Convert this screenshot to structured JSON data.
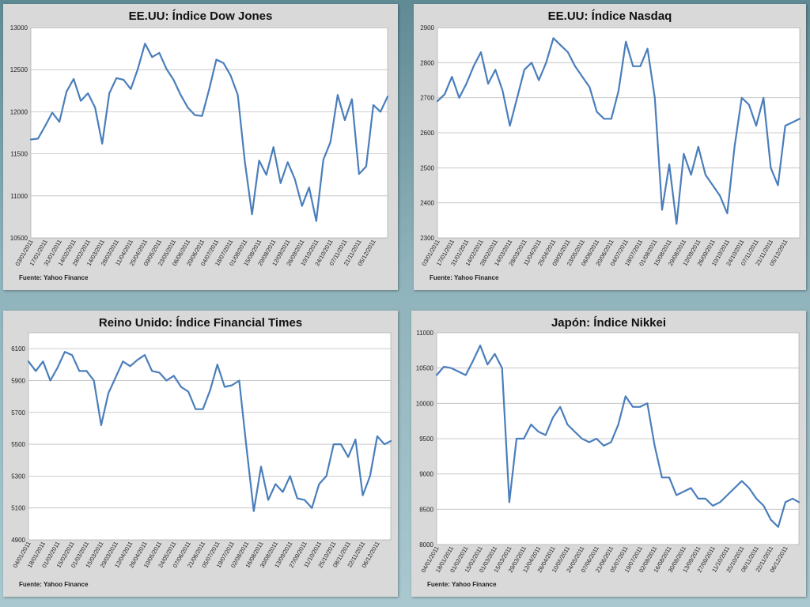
{
  "chart_data": [
    {
      "type": "line",
      "title": "EE.UU: Índice Dow Jones",
      "source": "Fuente:  Yahoo Finance",
      "ylim": [
        10500,
        13000
      ],
      "yticks": [
        10500,
        11000,
        11500,
        12000,
        12500,
        13000
      ],
      "xlim": [
        "2011-01-03",
        "2011-12-19"
      ],
      "xticks": [
        "03/01/2011",
        "17/01/2011",
        "31/01/2011",
        "14/02/2011",
        "28/02/2011",
        "14/03/2011",
        "28/03/2011",
        "11/04/2011",
        "25/04/2011",
        "09/05/2011",
        "23/05/2011",
        "06/06/2011",
        "20/06/2011",
        "04/07/2011",
        "18/07/2011",
        "01/08/2011",
        "15/08/2011",
        "29/08/2011",
        "12/09/2011",
        "26/09/2011",
        "10/10/2011",
        "24/10/2011",
        "07/11/2011",
        "21/11/2011",
        "05/12/2011"
      ],
      "grid": true,
      "series": [
        {
          "color": "#4a7ebb",
          "x": [
            "2011-01-03",
            "2011-01-10",
            "2011-01-17",
            "2011-01-24",
            "2011-01-31",
            "2011-02-07",
            "2011-02-14",
            "2011-02-21",
            "2011-02-28",
            "2011-03-07",
            "2011-03-14",
            "2011-03-21",
            "2011-03-28",
            "2011-04-04",
            "2011-04-11",
            "2011-04-18",
            "2011-04-25",
            "2011-05-02",
            "2011-05-09",
            "2011-05-16",
            "2011-05-23",
            "2011-05-30",
            "2011-06-06",
            "2011-06-13",
            "2011-06-20",
            "2011-06-27",
            "2011-07-04",
            "2011-07-11",
            "2011-07-18",
            "2011-07-25",
            "2011-08-01",
            "2011-08-08",
            "2011-08-15",
            "2011-08-22",
            "2011-08-29",
            "2011-09-05",
            "2011-09-12",
            "2011-09-19",
            "2011-09-26",
            "2011-10-03",
            "2011-10-10",
            "2011-10-17",
            "2011-10-24",
            "2011-10-31",
            "2011-11-07",
            "2011-11-14",
            "2011-11-21",
            "2011-11-28",
            "2011-12-05",
            "2011-12-12",
            "2011-12-19"
          ],
          "values": [
            11670,
            11680,
            11830,
            11990,
            11880,
            12240,
            12390,
            12130,
            12220,
            12050,
            11620,
            12220,
            12400,
            12380,
            12270,
            12510,
            12810,
            12650,
            12700,
            12510,
            12380,
            12200,
            12050,
            11960,
            11950,
            12270,
            12620,
            12580,
            12430,
            12200,
            11400,
            10780,
            11420,
            11250,
            11580,
            11150,
            11400,
            11200,
            10880,
            11100,
            10700,
            11430,
            11640,
            12200,
            11900,
            12150,
            11260,
            11350,
            12080,
            12000,
            12180
          ]
        }
      ]
    },
    {
      "type": "line",
      "title": "EE.UU: Índice Nasdaq",
      "source": "Fuente:  Yahoo Finance",
      "ylim": [
        2300,
        2900
      ],
      "yticks": [
        2300,
        2400,
        2500,
        2600,
        2700,
        2800,
        2900
      ],
      "xlim": [
        "2011-01-03",
        "2011-12-19"
      ],
      "xticks": [
        "03/01/2011",
        "17/01/2011",
        "31/01/2011",
        "14/02/2011",
        "28/02/2011",
        "14/03/2011",
        "28/03/2011",
        "11/04/2011",
        "25/04/2011",
        "09/05/2011",
        "23/05/2011",
        "06/06/2011",
        "20/06/2011",
        "04/07/2011",
        "18/07/2011",
        "01/08/2011",
        "15/08/2011",
        "29/08/2011",
        "12/09/2011",
        "26/09/2011",
        "10/10/2011",
        "24/10/2011",
        "07/11/2011",
        "21/11/2011",
        "05/12/2011"
      ],
      "grid": true,
      "series": [
        {
          "color": "#4a7ebb",
          "x": [
            "2011-01-03",
            "2011-01-10",
            "2011-01-17",
            "2011-01-24",
            "2011-01-31",
            "2011-02-07",
            "2011-02-14",
            "2011-02-21",
            "2011-02-28",
            "2011-03-07",
            "2011-03-14",
            "2011-03-21",
            "2011-03-28",
            "2011-04-04",
            "2011-04-11",
            "2011-04-18",
            "2011-04-25",
            "2011-05-02",
            "2011-05-09",
            "2011-05-16",
            "2011-05-23",
            "2011-05-30",
            "2011-06-06",
            "2011-06-13",
            "2011-06-20",
            "2011-06-27",
            "2011-07-04",
            "2011-07-11",
            "2011-07-18",
            "2011-07-25",
            "2011-08-01",
            "2011-08-08",
            "2011-08-15",
            "2011-08-22",
            "2011-08-29",
            "2011-09-05",
            "2011-09-12",
            "2011-09-19",
            "2011-09-26",
            "2011-10-03",
            "2011-10-10",
            "2011-10-17",
            "2011-10-24",
            "2011-10-31",
            "2011-11-07",
            "2011-11-14",
            "2011-11-21",
            "2011-11-28",
            "2011-12-05",
            "2011-12-12",
            "2011-12-19"
          ],
          "values": [
            2690,
            2710,
            2760,
            2700,
            2740,
            2790,
            2830,
            2740,
            2780,
            2720,
            2620,
            2700,
            2780,
            2800,
            2750,
            2800,
            2870,
            2850,
            2830,
            2790,
            2760,
            2730,
            2660,
            2640,
            2640,
            2720,
            2860,
            2790,
            2790,
            2840,
            2700,
            2380,
            2510,
            2340,
            2540,
            2480,
            2560,
            2480,
            2450,
            2420,
            2370,
            2560,
            2700,
            2680,
            2620,
            2700,
            2500,
            2450,
            2620,
            2630,
            2640
          ]
        }
      ]
    },
    {
      "type": "line",
      "title": "Reino Unido: Índice Financial Times",
      "source": "Fuente:  Yahoo Finance",
      "ylim": [
        4900,
        6200
      ],
      "yticks": [
        4900,
        5100,
        5300,
        5500,
        5700,
        5900,
        6100
      ],
      "xlim": [
        "2011-01-04",
        "2011-12-19"
      ],
      "xticks": [
        "04/01/2011",
        "18/01/2011",
        "01/02/2011",
        "15/02/2011",
        "01/03/2011",
        "15/03/2011",
        "29/03/2011",
        "12/04/2011",
        "26/04/2011",
        "10/05/2011",
        "24/05/2011",
        "07/06/2011",
        "21/06/2011",
        "05/07/2011",
        "19/07/2011",
        "02/08/2011",
        "16/08/2011",
        "30/08/2011",
        "13/09/2011",
        "27/09/2011",
        "11/10/2011",
        "25/10/2011",
        "08/11/2011",
        "22/11/2011",
        "06/12/2011"
      ],
      "grid": true,
      "series": [
        {
          "color": "#4a7ebb",
          "x": [
            "2011-01-04",
            "2011-01-11",
            "2011-01-18",
            "2011-01-25",
            "2011-02-01",
            "2011-02-08",
            "2011-02-15",
            "2011-02-22",
            "2011-03-01",
            "2011-03-08",
            "2011-03-15",
            "2011-03-22",
            "2011-03-29",
            "2011-04-05",
            "2011-04-12",
            "2011-04-19",
            "2011-04-26",
            "2011-05-03",
            "2011-05-10",
            "2011-05-17",
            "2011-05-24",
            "2011-05-31",
            "2011-06-07",
            "2011-06-14",
            "2011-06-21",
            "2011-06-28",
            "2011-07-05",
            "2011-07-12",
            "2011-07-19",
            "2011-07-26",
            "2011-08-02",
            "2011-08-09",
            "2011-08-16",
            "2011-08-23",
            "2011-08-30",
            "2011-09-06",
            "2011-09-13",
            "2011-09-20",
            "2011-09-27",
            "2011-10-04",
            "2011-10-11",
            "2011-10-18",
            "2011-10-25",
            "2011-11-01",
            "2011-11-08",
            "2011-11-15",
            "2011-11-22",
            "2011-11-29",
            "2011-12-06",
            "2011-12-13",
            "2011-12-19"
          ],
          "values": [
            6020,
            5960,
            6020,
            5900,
            5980,
            6080,
            6060,
            5960,
            5960,
            5900,
            5620,
            5820,
            5920,
            6020,
            5990,
            6030,
            6060,
            5960,
            5950,
            5900,
            5930,
            5860,
            5830,
            5720,
            5720,
            5840,
            6000,
            5860,
            5870,
            5900,
            5480,
            5080,
            5360,
            5150,
            5250,
            5200,
            5300,
            5160,
            5150,
            5100,
            5250,
            5300,
            5500,
            5500,
            5420,
            5530,
            5180,
            5300,
            5550,
            5500,
            5520
          ]
        }
      ]
    },
    {
      "type": "line",
      "title": "Japón: Índice Nikkei",
      "source": "Fuente:  Yahoo Finance",
      "ylim": [
        8000,
        11000
      ],
      "yticks": [
        8000,
        8500,
        9000,
        9500,
        10000,
        10500,
        11000
      ],
      "xlim": [
        "2011-01-04",
        "2011-12-19"
      ],
      "xticks": [
        "04/01/2011",
        "18/01/2011",
        "01/02/2011",
        "15/02/2011",
        "01/03/2011",
        "15/03/2011",
        "29/03/2011",
        "12/04/2011",
        "26/04/2011",
        "10/05/2011",
        "24/05/2011",
        "07/06/2011",
        "21/06/2011",
        "05/07/2011",
        "19/07/2011",
        "02/08/2011",
        "16/08/2011",
        "30/08/2011",
        "13/09/2011",
        "27/09/2011",
        "11/10/2011",
        "25/10/2011",
        "08/11/2011",
        "22/11/2011",
        "06/12/2011"
      ],
      "grid": true,
      "series": [
        {
          "color": "#4a7ebb",
          "x": [
            "2011-01-04",
            "2011-01-11",
            "2011-01-18",
            "2011-01-25",
            "2011-02-01",
            "2011-02-08",
            "2011-02-15",
            "2011-02-22",
            "2011-03-01",
            "2011-03-08",
            "2011-03-15",
            "2011-03-22",
            "2011-03-29",
            "2011-04-05",
            "2011-04-12",
            "2011-04-19",
            "2011-04-26",
            "2011-05-03",
            "2011-05-10",
            "2011-05-17",
            "2011-05-24",
            "2011-05-31",
            "2011-06-07",
            "2011-06-14",
            "2011-06-21",
            "2011-06-28",
            "2011-07-05",
            "2011-07-12",
            "2011-07-19",
            "2011-07-26",
            "2011-08-02",
            "2011-08-09",
            "2011-08-16",
            "2011-08-23",
            "2011-08-30",
            "2011-09-06",
            "2011-09-13",
            "2011-09-20",
            "2011-09-27",
            "2011-10-04",
            "2011-10-11",
            "2011-10-18",
            "2011-10-25",
            "2011-11-01",
            "2011-11-08",
            "2011-11-15",
            "2011-11-22",
            "2011-11-29",
            "2011-12-06",
            "2011-12-13",
            "2011-12-19"
          ],
          "values": [
            10400,
            10520,
            10500,
            10450,
            10400,
            10600,
            10820,
            10550,
            10700,
            10500,
            8600,
            9500,
            9500,
            9700,
            9600,
            9550,
            9800,
            9950,
            9700,
            9600,
            9500,
            9450,
            9500,
            9400,
            9450,
            9700,
            10100,
            9950,
            9950,
            10000,
            9400,
            8950,
            8950,
            8700,
            8750,
            8800,
            8650,
            8650,
            8550,
            8600,
            8700,
            8800,
            8900,
            8800,
            8650,
            8550,
            8350,
            8250,
            8600,
            8650,
            8600
          ]
        }
      ]
    }
  ]
}
